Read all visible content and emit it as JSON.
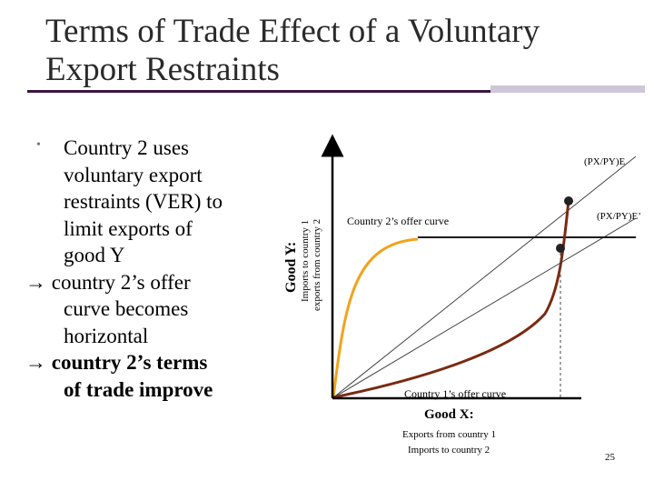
{
  "slide": {
    "title_line1": "Terms of Trade Effect of a Voluntary",
    "title_line2": "Export Restraints",
    "page_number": "25"
  },
  "bullet": {
    "marker": "•",
    "lines": [
      "Country 2 uses",
      "voluntary export",
      "restraints (VER) to",
      "limit exports of",
      "good Y",
      "→ country 2’s offer",
      "curve becomes",
      "horizontal",
      "→ country 2’s terms",
      "of trade improve"
    ]
  },
  "diagram": {
    "y_axis": {
      "label": "Good Y:",
      "sub1": "Imports to country 1",
      "sub2": "exports from country 2"
    },
    "x_axis": {
      "label": "Good X:",
      "sub1": "Exports from country 1",
      "sub2": "Imports to country 2"
    },
    "country2_curve_label": "Country 2’s offer curve",
    "country1_curve_label": "Country 1’s offer curve",
    "tot_e_label": "(PX/PY)E",
    "tot_e_prime_label": "(PX/PY)E’",
    "colors": {
      "country1_curve": "#7a2a10",
      "country2_curve": "#f2a31b",
      "axes": "#000000",
      "rays": "#444444",
      "title_rule": "#3a1840",
      "title_rule_accent": "#cfc7d8"
    }
  }
}
